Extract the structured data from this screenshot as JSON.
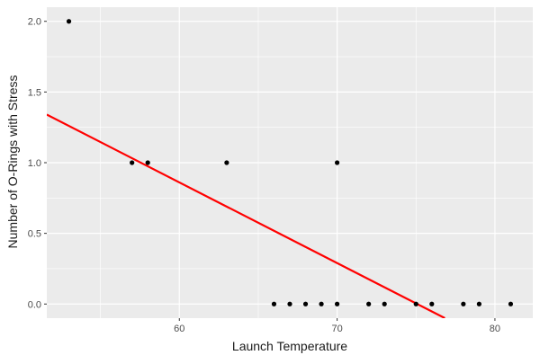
{
  "chart_data": {
    "type": "scatter",
    "title": "",
    "xlabel": "Launch Temperature",
    "ylabel": "Number of O-Rings with Stress",
    "xlim": [
      51.6,
      82.4
    ],
    "ylim": [
      -0.1,
      2.1
    ],
    "x_ticks": [
      60,
      70,
      80
    ],
    "x_tick_labels": [
      "60",
      "70",
      "80"
    ],
    "y_ticks": [
      0,
      0.5,
      1,
      1.5,
      2
    ],
    "y_tick_labels": [
      "0.0",
      "0.5",
      "1.0",
      "1.5",
      "2.0"
    ],
    "grid": true,
    "panel_background": "#EBEBEB",
    "grid_color": "#FFFFFF",
    "point_color": "#000000",
    "fit_line_color": "#FF0000",
    "points": [
      {
        "x": 53,
        "y": 2
      },
      {
        "x": 57,
        "y": 1
      },
      {
        "x": 58,
        "y": 1
      },
      {
        "x": 63,
        "y": 1
      },
      {
        "x": 70,
        "y": 1
      },
      {
        "x": 66,
        "y": 0
      },
      {
        "x": 67,
        "y": 0
      },
      {
        "x": 68,
        "y": 0
      },
      {
        "x": 69,
        "y": 0
      },
      {
        "x": 70,
        "y": 0
      },
      {
        "x": 72,
        "y": 0
      },
      {
        "x": 73,
        "y": 0
      },
      {
        "x": 75,
        "y": 0
      },
      {
        "x": 76,
        "y": 0
      },
      {
        "x": 78,
        "y": 0
      },
      {
        "x": 79,
        "y": 0
      },
      {
        "x": 81,
        "y": 0
      }
    ],
    "fit_line": {
      "x0": 51.6,
      "y0": 1.34,
      "x1": 76.83,
      "y1": -0.1
    }
  }
}
